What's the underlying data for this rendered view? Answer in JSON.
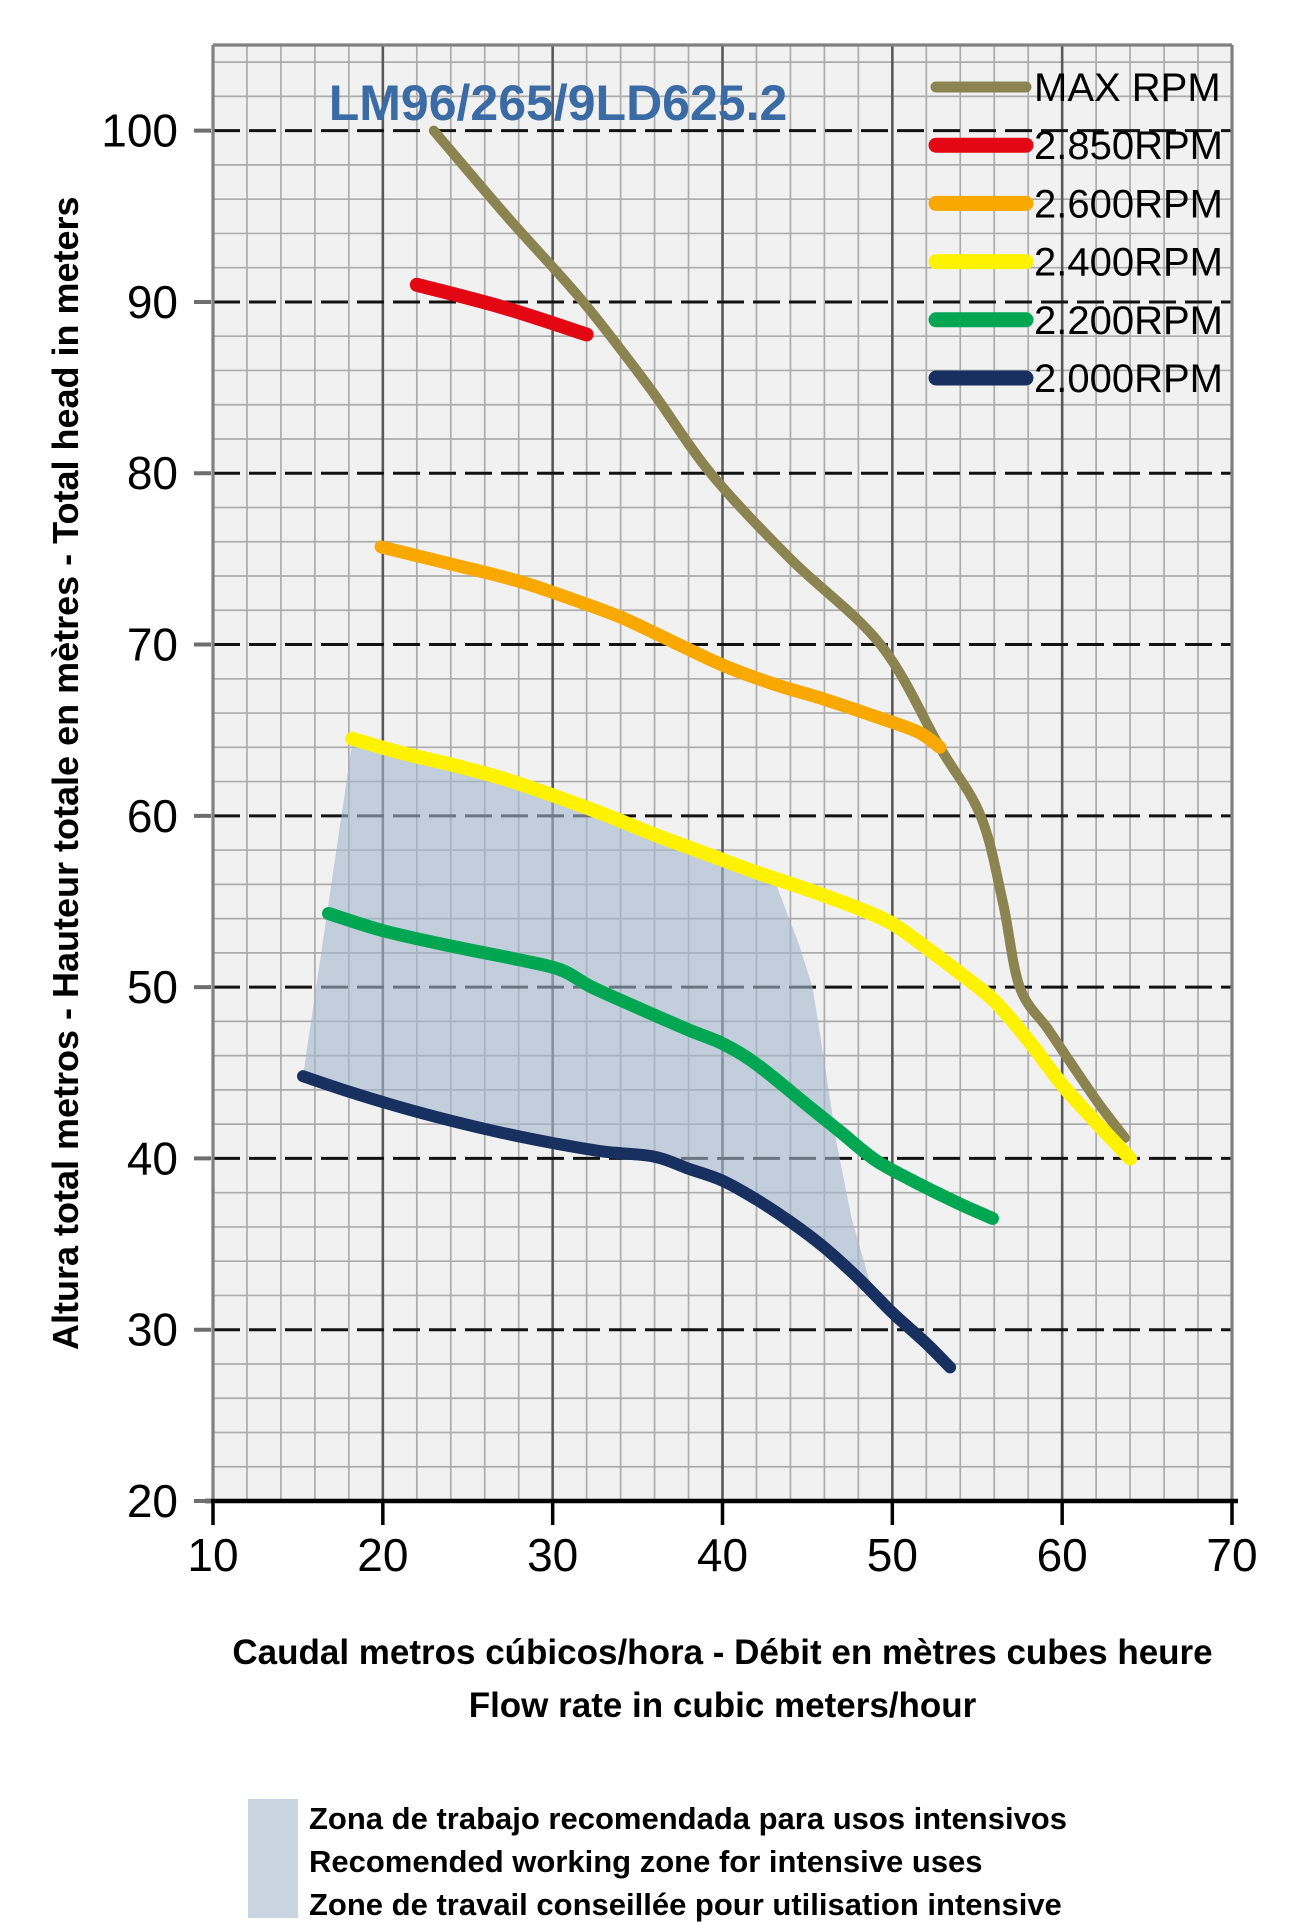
{
  "title": "LM96/265/9LD625.2",
  "colors": {
    "title": "#3A6BA5",
    "plot_bg": "#F1F1F2",
    "grid_minor": "#ACACAC",
    "grid_major_vertical": "#58595B",
    "grid_major_horizontal": "#121212",
    "axis": "#000000",
    "border": "#808080",
    "tick": "#6E6E6E",
    "working_zone_fill": "rgba(164,183,204,0.6)"
  },
  "axes": {
    "x": {
      "label_line1": "Caudal metros cúbicos/hora - Débit en mètres cubes heure",
      "label_line2": "Flow rate in cubic meters/hour",
      "ticks": [
        10,
        20,
        30,
        40,
        50,
        60,
        70
      ],
      "min": 10,
      "max": 70,
      "minor_step": 2
    },
    "y": {
      "label": "Altura total metros - Hauteur totale en mètres - Total head in meters",
      "ticks": [
        20,
        30,
        40,
        50,
        60,
        70,
        80,
        90,
        100
      ],
      "min": 20,
      "max": 105,
      "minor_step": 2
    }
  },
  "working_zone_note": {
    "lines": [
      "Zona de trabajo recomendada para usos intensivos",
      "Recomended working zone for intensive uses",
      "Zone de travail conseillée pour utilisation intensive"
    ]
  },
  "chart_data": {
    "type": "line",
    "title": "LM96/265/9LD625.2",
    "xlabel": "Flow rate in cubic meters/hour",
    "ylabel": "Total head in meters",
    "xlim": [
      10,
      70
    ],
    "ylim": [
      20,
      105
    ],
    "grid": true,
    "legend_position": "top-right",
    "series": [
      {
        "name": "MAX RPM",
        "key": "max-rpm",
        "color": "#8C8450",
        "width": 10,
        "points": [
          [
            23,
            100
          ],
          [
            27.3,
            95
          ],
          [
            31.8,
            90
          ],
          [
            35.7,
            85
          ],
          [
            39.3,
            80
          ],
          [
            44,
            75
          ],
          [
            49.3,
            70
          ],
          [
            52.8,
            64
          ],
          [
            55.2,
            60
          ],
          [
            56.5,
            55
          ],
          [
            57.5,
            50
          ],
          [
            59.2,
            47.5
          ],
          [
            60.9,
            45
          ],
          [
            62.3,
            43
          ],
          [
            63.7,
            41.2
          ]
        ]
      },
      {
        "name": "2.850RPM",
        "key": "2850rpm",
        "color": "#E30613",
        "width": 14,
        "points": [
          [
            22,
            91
          ],
          [
            27,
            89.7
          ],
          [
            32,
            88.1
          ]
        ]
      },
      {
        "name": "2.600RPM",
        "key": "2600rpm",
        "color": "#F9A800",
        "width": 13,
        "points": [
          [
            19.9,
            75.7
          ],
          [
            24,
            74.7
          ],
          [
            28,
            73.7
          ],
          [
            31,
            72.7
          ],
          [
            34,
            71.6
          ],
          [
            37,
            70.2
          ],
          [
            40,
            68.8
          ],
          [
            43,
            67.7
          ],
          [
            46,
            66.8
          ],
          [
            49,
            65.8
          ],
          [
            51.5,
            64.9
          ],
          [
            52.8,
            64
          ]
        ]
      },
      {
        "name": "2.400RPM",
        "key": "2400rpm",
        "color": "#FFF200",
        "width": 14,
        "points": [
          [
            18.2,
            64.5
          ],
          [
            21,
            63.7
          ],
          [
            24,
            63
          ],
          [
            27,
            62.2
          ],
          [
            30,
            61.2
          ],
          [
            33,
            60.1
          ],
          [
            36,
            58.9
          ],
          [
            39,
            57.8
          ],
          [
            42,
            56.7
          ],
          [
            45,
            55.7
          ],
          [
            48,
            54.6
          ],
          [
            50,
            53.7
          ],
          [
            52,
            52.3
          ],
          [
            54,
            50.8
          ],
          [
            56,
            49.2
          ],
          [
            58,
            46.9
          ],
          [
            60,
            44.3
          ],
          [
            62,
            42.1
          ],
          [
            64,
            40
          ]
        ]
      },
      {
        "name": "2.200RPM",
        "key": "2200rpm",
        "color": "#00A651",
        "width": 13,
        "points": [
          [
            16.8,
            54.3
          ],
          [
            20,
            53.3
          ],
          [
            24,
            52.4
          ],
          [
            28,
            51.6
          ],
          [
            30.5,
            51
          ],
          [
            32.3,
            50
          ],
          [
            35,
            48.8
          ],
          [
            38,
            47.5
          ],
          [
            40,
            46.7
          ],
          [
            42,
            45.5
          ],
          [
            45,
            43.1
          ],
          [
            47,
            41.5
          ],
          [
            49,
            39.9
          ],
          [
            51,
            38.8
          ],
          [
            53,
            37.8
          ],
          [
            54.5,
            37.1
          ],
          [
            55.9,
            36.5
          ]
        ]
      },
      {
        "name": "2.000RPM",
        "key": "2000rpm",
        "color": "#17305F",
        "width": 12,
        "points": [
          [
            15.3,
            44.8
          ],
          [
            18,
            43.9
          ],
          [
            21,
            43
          ],
          [
            24,
            42.2
          ],
          [
            27,
            41.5
          ],
          [
            30,
            40.9
          ],
          [
            33,
            40.4
          ],
          [
            36,
            40.1
          ],
          [
            38,
            39.4
          ],
          [
            40,
            38.7
          ],
          [
            42,
            37.6
          ],
          [
            44,
            36.3
          ],
          [
            46,
            34.8
          ],
          [
            48,
            33
          ],
          [
            50,
            31
          ],
          [
            52,
            29.2
          ],
          [
            53.4,
            27.8
          ]
        ]
      }
    ],
    "working_zone": {
      "label": "Recomended working zone for intensive uses",
      "fill": "rgba(164,183,204,0.6)",
      "polygon": [
        [
          15.3,
          44.8
        ],
        [
          18.2,
          64.3
        ],
        [
          21,
          63.5
        ],
        [
          24,
          62.8
        ],
        [
          27,
          62
        ],
        [
          30,
          61
        ],
        [
          33,
          59.9
        ],
        [
          36,
          58.7
        ],
        [
          39,
          57.6
        ],
        [
          41,
          56.9
        ],
        [
          43,
          56.4
        ],
        [
          44.5,
          52.5
        ],
        [
          45.3,
          50
        ],
        [
          46.1,
          45
        ],
        [
          46.7,
          41
        ],
        [
          47.6,
          36.5
        ],
        [
          48.9,
          32
        ],
        [
          48,
          33
        ],
        [
          46,
          34.8
        ],
        [
          44,
          36.3
        ],
        [
          42,
          37.6
        ],
        [
          40,
          38.7
        ],
        [
          38,
          39.4
        ],
        [
          36,
          40.1
        ],
        [
          33,
          40.4
        ],
        [
          30,
          40.9
        ],
        [
          27,
          41.5
        ],
        [
          24,
          42.2
        ],
        [
          21,
          43
        ],
        [
          18,
          43.9
        ]
      ]
    }
  }
}
